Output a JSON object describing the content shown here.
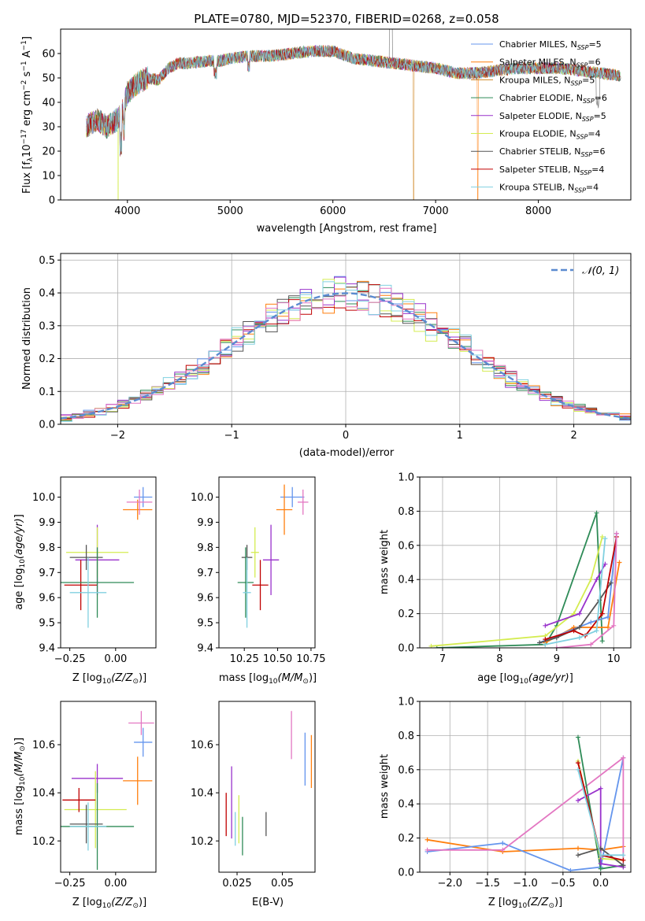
{
  "colors": {
    "c1": "#6495ed",
    "c2": "#ff7f0e",
    "c3": "#d08a2a",
    "c4": "#2e8b57",
    "c5": "#9932cc",
    "c6": "#d4ec50",
    "c7": "#555555",
    "c8": "#c00000",
    "c9": "#80d0e0",
    "c10": "#e377c2",
    "c11": "#6a8f3a",
    "c12": "#8080ff"
  },
  "chart_data": [
    {
      "id": "spectrum",
      "type": "line",
      "title": "PLATE=0780, MJD=52370, FIBERID=0268, z=0.058",
      "xlabel": "wavelength [Angstrom, rest frame]",
      "ylabel": "Flux [f_λ 10^-17 erg cm^-2 s^-1 A^-1]",
      "xlim": [
        3350,
        8900
      ],
      "ylim": [
        0,
        70
      ],
      "xticks": [
        4000,
        5000,
        6000,
        7000,
        8000
      ],
      "yticks": [
        0,
        10,
        20,
        30,
        40,
        50,
        60
      ],
      "legend_position": "top-right",
      "series": [
        {
          "name": "Chabrier MILES, N_SSP=5",
          "color": "#6495ed"
        },
        {
          "name": "Salpeter MILES, N_SSP=6",
          "color": "#ff7f0e"
        },
        {
          "name": "Kroupa MILES, N_SSP=5",
          "color": "#d08a2a"
        },
        {
          "name": "Chabrier ELODIE, N_SSP=6",
          "color": "#2e8b57"
        },
        {
          "name": "Salpeter ELODIE, N_SSP=5",
          "color": "#9932cc"
        },
        {
          "name": "Kroupa ELODIE, N_SSP=4",
          "color": "#d4ec50"
        },
        {
          "name": "Chabrier STELIB, N_SSP=6",
          "color": "#555555"
        },
        {
          "name": "Salpeter STELIB, N_SSP=4",
          "color": "#c00000"
        },
        {
          "name": "Kroupa STELIB, N_SSP=4",
          "color": "#80d0e0"
        }
      ],
      "continuum": [
        [
          3600,
          30
        ],
        [
          3700,
          33
        ],
        [
          3800,
          30
        ],
        [
          3900,
          33
        ],
        [
          3950,
          36
        ],
        [
          4000,
          44
        ],
        [
          4100,
          48
        ],
        [
          4200,
          50
        ],
        [
          4300,
          49
        ],
        [
          4400,
          54
        ],
        [
          4500,
          56
        ],
        [
          4600,
          56
        ],
        [
          4800,
          57
        ],
        [
          4900,
          57
        ],
        [
          5000,
          58
        ],
        [
          5200,
          59
        ],
        [
          5400,
          59
        ],
        [
          5600,
          60
        ],
        [
          5800,
          61
        ],
        [
          5900,
          61
        ],
        [
          6000,
          61
        ],
        [
          6200,
          58
        ],
        [
          6400,
          57
        ],
        [
          6600,
          56
        ],
        [
          6800,
          55
        ],
        [
          7000,
          54
        ],
        [
          7200,
          52
        ],
        [
          7400,
          52
        ],
        [
          7600,
          53
        ],
        [
          7800,
          54
        ],
        [
          8000,
          54
        ],
        [
          8200,
          54
        ],
        [
          8400,
          53
        ],
        [
          8600,
          52
        ],
        [
          8800,
          51
        ]
      ]
    },
    {
      "id": "residuals",
      "type": "histogram",
      "xlabel": "(data-model)/error",
      "ylabel": "Normed distribution",
      "xlim": [
        -2.5,
        2.5
      ],
      "ylim": [
        0,
        0.52
      ],
      "xticks": [
        -2,
        -1,
        0,
        1,
        2
      ],
      "yticks": [
        0.0,
        0.1,
        0.2,
        0.3,
        0.4,
        0.5
      ],
      "legend": "N(0,1)",
      "legend_position": "top-right",
      "bin_width": 0.1,
      "reference_curve": "normal(0,1)"
    },
    {
      "id": "age-vs-Z",
      "type": "errorbar",
      "xlabel": "Z [log10(Z/Z⊙)]",
      "ylabel": "age [log10(age/yr)]",
      "xlim": [
        -0.3,
        0.22
      ],
      "ylim": [
        9.4,
        10.08
      ],
      "xticks": [
        -0.25,
        0.0
      ],
      "yticks": [
        9.4,
        9.5,
        9.6,
        9.7,
        9.8,
        9.9,
        10.0
      ],
      "points": [
        {
          "x": 0.15,
          "y": 10.0,
          "ex": 0.05,
          "ey": 0.04,
          "color": "#6495ed"
        },
        {
          "x": 0.12,
          "y": 9.95,
          "ex": 0.08,
          "ey": 0.04,
          "color": "#ff7f0e"
        },
        {
          "x": 0.13,
          "y": 9.98,
          "ex": 0.07,
          "ey": 0.05,
          "color": "#e377c2"
        },
        {
          "x": -0.1,
          "y": 9.75,
          "ex": 0.12,
          "ey": 0.14,
          "color": "#9932cc"
        },
        {
          "x": -0.1,
          "y": 9.78,
          "ex": 0.17,
          "ey": 0.1,
          "color": "#d4ec50"
        },
        {
          "x": -0.16,
          "y": 9.76,
          "ex": 0.09,
          "ey": 0.05,
          "color": "#555555"
        },
        {
          "x": -0.19,
          "y": 9.65,
          "ex": 0.09,
          "ey": 0.1,
          "color": "#c00000"
        },
        {
          "x": -0.1,
          "y": 9.66,
          "ex": 0.2,
          "ey": 0.14,
          "color": "#2e8b57"
        },
        {
          "x": -0.15,
          "y": 9.62,
          "ex": 0.1,
          "ey": 0.14,
          "color": "#80d0e0"
        }
      ]
    },
    {
      "id": "age-vs-mass",
      "type": "errorbar",
      "xlabel": "mass [log10(M/M⊙)]",
      "ylabel": "",
      "xlim": [
        10.06,
        10.78
      ],
      "ylim": [
        9.4,
        10.08
      ],
      "xticks": [
        10.25,
        10.5,
        10.75
      ],
      "yticks": [
        9.4,
        9.5,
        9.6,
        9.7,
        9.8,
        9.9,
        10.0
      ],
      "points": [
        {
          "x": 10.61,
          "y": 10.0,
          "ex": 0.09,
          "ey": 0.04,
          "color": "#6495ed"
        },
        {
          "x": 10.55,
          "y": 9.95,
          "ex": 0.06,
          "ey": 0.1,
          "color": "#ff7f0e"
        },
        {
          "x": 10.69,
          "y": 9.98,
          "ex": 0.04,
          "ey": 0.05,
          "color": "#e377c2"
        },
        {
          "x": 10.45,
          "y": 9.75,
          "ex": 0.06,
          "ey": 0.14,
          "color": "#9932cc"
        },
        {
          "x": 10.33,
          "y": 9.78,
          "ex": 0.03,
          "ey": 0.1,
          "color": "#d4ec50"
        },
        {
          "x": 10.27,
          "y": 9.76,
          "ex": 0.04,
          "ey": 0.05,
          "color": "#555555"
        },
        {
          "x": 10.37,
          "y": 9.65,
          "ex": 0.06,
          "ey": 0.1,
          "color": "#c00000"
        },
        {
          "x": 10.26,
          "y": 9.66,
          "ex": 0.06,
          "ey": 0.14,
          "color": "#2e8b57"
        },
        {
          "x": 10.27,
          "y": 9.62,
          "ex": 0.03,
          "ey": 0.14,
          "color": "#80d0e0"
        }
      ]
    },
    {
      "id": "weight-vs-age",
      "type": "line",
      "xlabel": "age [log10(age/yr)]",
      "ylabel": "mass weight",
      "xlim": [
        6.6,
        10.3
      ],
      "ylim": [
        0,
        1.0
      ],
      "xticks": [
        7,
        8,
        9,
        10
      ],
      "yticks": [
        0.0,
        0.2,
        0.4,
        0.6,
        0.8,
        1.0
      ],
      "series": [
        {
          "color": "#2e8b57",
          "points": [
            [
              6.9,
              0.0
            ],
            [
              8.8,
              0.02
            ],
            [
              9.0,
              0.13
            ],
            [
              9.7,
              0.79
            ],
            [
              9.8,
              0.04
            ]
          ]
        },
        {
          "color": "#d4ec50",
          "points": [
            [
              6.8,
              0.01
            ],
            [
              8.8,
              0.07
            ],
            [
              9.3,
              0.2
            ],
            [
              9.6,
              0.4
            ],
            [
              9.8,
              0.65
            ]
          ]
        },
        {
          "color": "#ff7f0e",
          "points": [
            [
              8.8,
              0.03
            ],
            [
              9.3,
              0.12
            ],
            [
              9.9,
              0.12
            ],
            [
              10.1,
              0.5
            ]
          ]
        },
        {
          "color": "#6495ed",
          "points": [
            [
              8.7,
              0.03
            ],
            [
              9.6,
              0.15
            ],
            [
              9.9,
              0.18
            ],
            [
              10.05,
              0.67
            ]
          ]
        },
        {
          "color": "#9932cc",
          "points": [
            [
              8.8,
              0.13
            ],
            [
              9.4,
              0.2
            ],
            [
              9.7,
              0.4
            ],
            [
              9.85,
              0.49
            ]
          ]
        },
        {
          "color": "#555555",
          "points": [
            [
              8.7,
              0.03
            ],
            [
              9.0,
              0.06
            ],
            [
              9.4,
              0.12
            ],
            [
              9.75,
              0.28
            ],
            [
              9.95,
              0.38
            ]
          ]
        },
        {
          "color": "#c00000",
          "points": [
            [
              8.8,
              0.05
            ],
            [
              9.3,
              0.1
            ],
            [
              9.5,
              0.07
            ],
            [
              9.8,
              0.2
            ],
            [
              10.05,
              0.65
            ]
          ]
        },
        {
          "color": "#80d0e0",
          "points": [
            [
              8.8,
              0.02
            ],
            [
              9.4,
              0.06
            ],
            [
              9.7,
              0.1
            ],
            [
              9.85,
              0.64
            ]
          ]
        },
        {
          "color": "#e377c2",
          "points": [
            [
              9.0,
              0.0
            ],
            [
              9.6,
              0.02
            ],
            [
              10.0,
              0.13
            ],
            [
              10.05,
              0.67
            ]
          ]
        }
      ]
    },
    {
      "id": "mass-vs-Z",
      "type": "errorbar",
      "xlabel": "Z [log10(Z/Z⊙)]",
      "ylabel": "mass [log10(M/M⊙)]",
      "xlim": [
        -0.3,
        0.22
      ],
      "ylim": [
        10.07,
        10.78
      ],
      "xticks": [
        -0.25,
        0.0
      ],
      "yticks": [
        10.2,
        10.4,
        10.6
      ],
      "points": [
        {
          "x": 0.15,
          "y": 10.61,
          "ex": 0.05,
          "ey": 0.06,
          "color": "#6495ed"
        },
        {
          "x": 0.12,
          "y": 10.45,
          "ex": 0.08,
          "ey": 0.1,
          "color": "#ff7f0e"
        },
        {
          "x": 0.14,
          "y": 10.69,
          "ex": 0.07,
          "ey": 0.05,
          "color": "#e377c2"
        },
        {
          "x": -0.1,
          "y": 10.46,
          "ex": 0.14,
          "ey": 0.06,
          "color": "#9932cc"
        },
        {
          "x": -0.11,
          "y": 10.33,
          "ex": 0.17,
          "ey": 0.16,
          "color": "#d4ec50"
        },
        {
          "x": -0.16,
          "y": 10.27,
          "ex": 0.09,
          "ey": 0.08,
          "color": "#555555"
        },
        {
          "x": -0.2,
          "y": 10.37,
          "ex": 0.09,
          "ey": 0.05,
          "color": "#c00000"
        },
        {
          "x": -0.1,
          "y": 10.26,
          "ex": 0.2,
          "ey": 0.18,
          "color": "#2e8b57"
        },
        {
          "x": -0.15,
          "y": 10.26,
          "ex": 0.1,
          "ey": 0.1,
          "color": "#80d0e0"
        }
      ]
    },
    {
      "id": "mass-vs-EBV",
      "type": "errorbar",
      "xlabel": "E(B-V)",
      "ylabel": "",
      "xlim": [
        0.015,
        0.068
      ],
      "ylim": [
        10.07,
        10.78
      ],
      "xticks": [
        0.025,
        0.05
      ],
      "yticks": [
        10.2,
        10.4,
        10.6
      ],
      "points": [
        {
          "x": 0.0625,
          "y": 10.54,
          "ex": 0,
          "ey": 0.11,
          "color": "#6495ed"
        },
        {
          "x": 0.066,
          "y": 10.53,
          "ex": 0,
          "ey": 0.11,
          "color": "#ff7f0e"
        },
        {
          "x": 0.055,
          "y": 10.64,
          "ex": 0,
          "ey": 0.1,
          "color": "#e377c2"
        },
        {
          "x": 0.022,
          "y": 10.36,
          "ex": 0,
          "ey": 0.15,
          "color": "#9932cc"
        },
        {
          "x": 0.026,
          "y": 10.29,
          "ex": 0,
          "ey": 0.1,
          "color": "#d4ec50"
        },
        {
          "x": 0.041,
          "y": 10.27,
          "ex": 0,
          "ey": 0.05,
          "color": "#555555"
        },
        {
          "x": 0.019,
          "y": 10.31,
          "ex": 0,
          "ey": 0.09,
          "color": "#c00000"
        },
        {
          "x": 0.028,
          "y": 10.22,
          "ex": 0,
          "ey": 0.08,
          "color": "#2e8b57"
        },
        {
          "x": 0.024,
          "y": 10.25,
          "ex": 0,
          "ey": 0.07,
          "color": "#80d0e0"
        }
      ]
    },
    {
      "id": "weight-vs-Z",
      "type": "line",
      "xlabel": "Z [log10(Z/Z⊙)]",
      "ylabel": "mass weight",
      "xlim": [
        -2.4,
        0.4
      ],
      "ylim": [
        0,
        1.0
      ],
      "xticks": [
        -2.0,
        -1.5,
        -1.0,
        -0.5,
        0.0
      ],
      "yticks": [
        0.0,
        0.2,
        0.4,
        0.6,
        0.8,
        1.0
      ],
      "series": [
        {
          "color": "#ff7f0e",
          "points": [
            [
              -2.3,
              0.19
            ],
            [
              -1.3,
              0.12
            ],
            [
              -0.3,
              0.14
            ],
            [
              0.0,
              0.13
            ],
            [
              0.3,
              0.15
            ]
          ]
        },
        {
          "color": "#6495ed",
          "points": [
            [
              -2.3,
              0.12
            ],
            [
              -1.3,
              0.17
            ],
            [
              -0.4,
              0.01
            ],
            [
              0.0,
              0.03
            ],
            [
              0.3,
              0.67
            ]
          ]
        },
        {
          "color": "#e377c2",
          "points": [
            [
              -2.3,
              0.13
            ],
            [
              -1.3,
              0.13
            ],
            [
              0.3,
              0.67
            ],
            [
              0.3,
              0.03
            ]
          ]
        },
        {
          "color": "#2e8b57",
          "points": [
            [
              -0.3,
              0.79
            ],
            [
              0.0,
              0.02
            ],
            [
              0.3,
              0.04
            ]
          ]
        },
        {
          "color": "#d4ec50",
          "points": [
            [
              -0.3,
              0.65
            ],
            [
              0.0,
              0.08
            ],
            [
              0.3,
              0.07
            ]
          ]
        },
        {
          "color": "#9932cc",
          "points": [
            [
              -0.3,
              0.42
            ],
            [
              0.0,
              0.49
            ],
            [
              0.0,
              0.05
            ],
            [
              0.3,
              0.03
            ]
          ]
        },
        {
          "color": "#555555",
          "points": [
            [
              -0.3,
              0.1
            ],
            [
              0.0,
              0.14
            ],
            [
              0.3,
              0.04
            ]
          ]
        },
        {
          "color": "#c00000",
          "points": [
            [
              -0.3,
              0.64
            ],
            [
              0.0,
              0.1
            ],
            [
              0.3,
              0.07
            ]
          ]
        },
        {
          "color": "#80d0e0",
          "points": [
            [
              -0.3,
              0.6
            ],
            [
              0.0,
              0.1
            ],
            [
              0.3,
              0.1
            ]
          ]
        }
      ]
    }
  ]
}
